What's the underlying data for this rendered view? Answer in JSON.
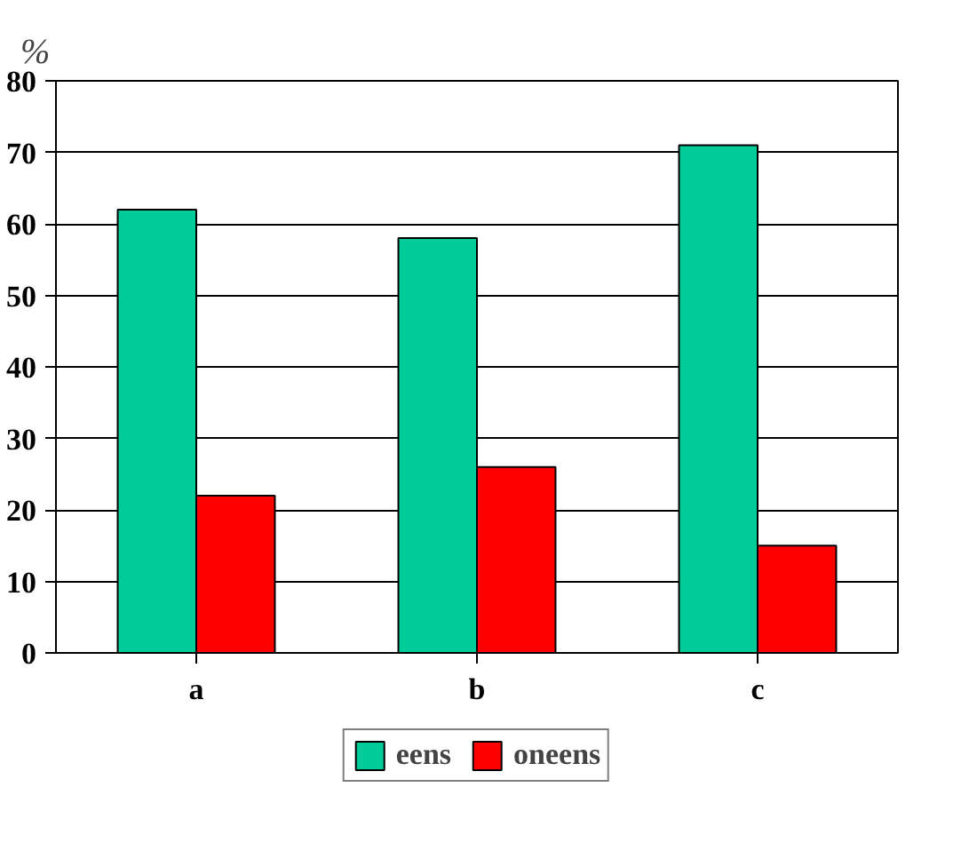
{
  "chart_data": {
    "type": "bar",
    "ylabel": "%",
    "categories": [
      "a",
      "b",
      "c"
    ],
    "series": [
      {
        "name": "eens",
        "color": "#00cc99",
        "values": [
          62,
          58,
          71
        ]
      },
      {
        "name": "oneens",
        "color": "#ff0000",
        "values": [
          22,
          26,
          15
        ]
      }
    ],
    "ylim": [
      0,
      80
    ],
    "yticks": [
      0,
      10,
      20,
      30,
      40,
      50,
      60,
      70,
      80
    ],
    "grid": "y",
    "legend": "bottom"
  }
}
